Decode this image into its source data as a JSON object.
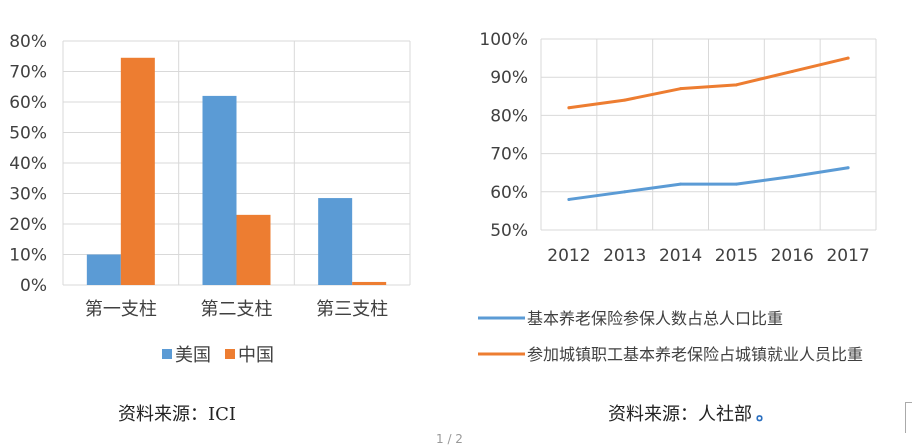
{
  "chart_data": [
    {
      "type": "bar",
      "categories": [
        "第一支柱",
        "第二支柱",
        "第三支柱"
      ],
      "series": [
        {
          "name": "美国",
          "values": [
            10,
            62,
            28.5
          ]
        },
        {
          "name": "中国",
          "values": [
            74.5,
            23,
            1
          ]
        }
      ],
      "colors": [
        "#5b9bd5",
        "#ed7d31"
      ],
      "ylim": [
        0,
        80
      ],
      "yticks": [
        "0%",
        "10%",
        "20%",
        "30%",
        "40%",
        "50%",
        "60%",
        "70%",
        "80%"
      ],
      "grid": true,
      "legend": "bottom"
    },
    {
      "type": "line",
      "x": [
        "2012",
        "2013",
        "2014",
        "2015",
        "2016",
        "2017"
      ],
      "series": [
        {
          "name": "基本养老保险参保人数占总人口比重",
          "values": [
            58,
            60,
            62,
            62,
            64,
            66.3
          ]
        },
        {
          "name": "参加城镇职工基本养老保险占城镇就业人员比重",
          "values": [
            82,
            84,
            87,
            88,
            91.5,
            95
          ]
        }
      ],
      "colors": [
        "#5b9bd5",
        "#ed7d31"
      ],
      "ylim": [
        50,
        100
      ],
      "yticks": [
        "50%",
        "60%",
        "70%",
        "80%",
        "90%",
        "100%"
      ],
      "grid": true,
      "legend": "bottom"
    }
  ],
  "sources": {
    "left": "资料来源：ICI",
    "right": "资料来源：人社部",
    "right_mark": "。"
  },
  "page_number": "1 / 2"
}
